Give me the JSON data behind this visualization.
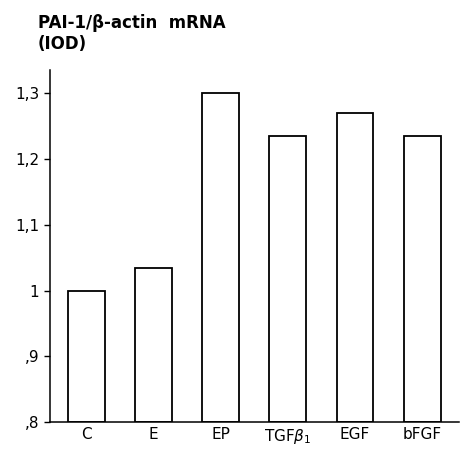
{
  "categories": [
    "C",
    "E",
    "EP",
    "TGFβ₁",
    "EGF",
    "bFGF"
  ],
  "values": [
    1.0,
    1.035,
    1.3,
    1.235,
    1.27,
    1.235
  ],
  "bar_color": "#ffffff",
  "bar_edgecolor": "#000000",
  "bar_linewidth": 1.3,
  "title_line1": "PAI-1/β-actin  mRNA",
  "title_line2": "(IOD)",
  "ylim": [
    0.8,
    1.335
  ],
  "yticks": [
    0.8,
    0.9,
    1.0,
    1.1,
    1.2,
    1.3
  ],
  "ytick_labels": [
    ",8",
    ",9",
    "1",
    "1,1",
    "1,2",
    "1,3"
  ],
  "background_color": "#ffffff",
  "title_fontsize": 12,
  "tick_fontsize": 11,
  "xlabel_fontsize": 11,
  "bar_width": 0.55
}
